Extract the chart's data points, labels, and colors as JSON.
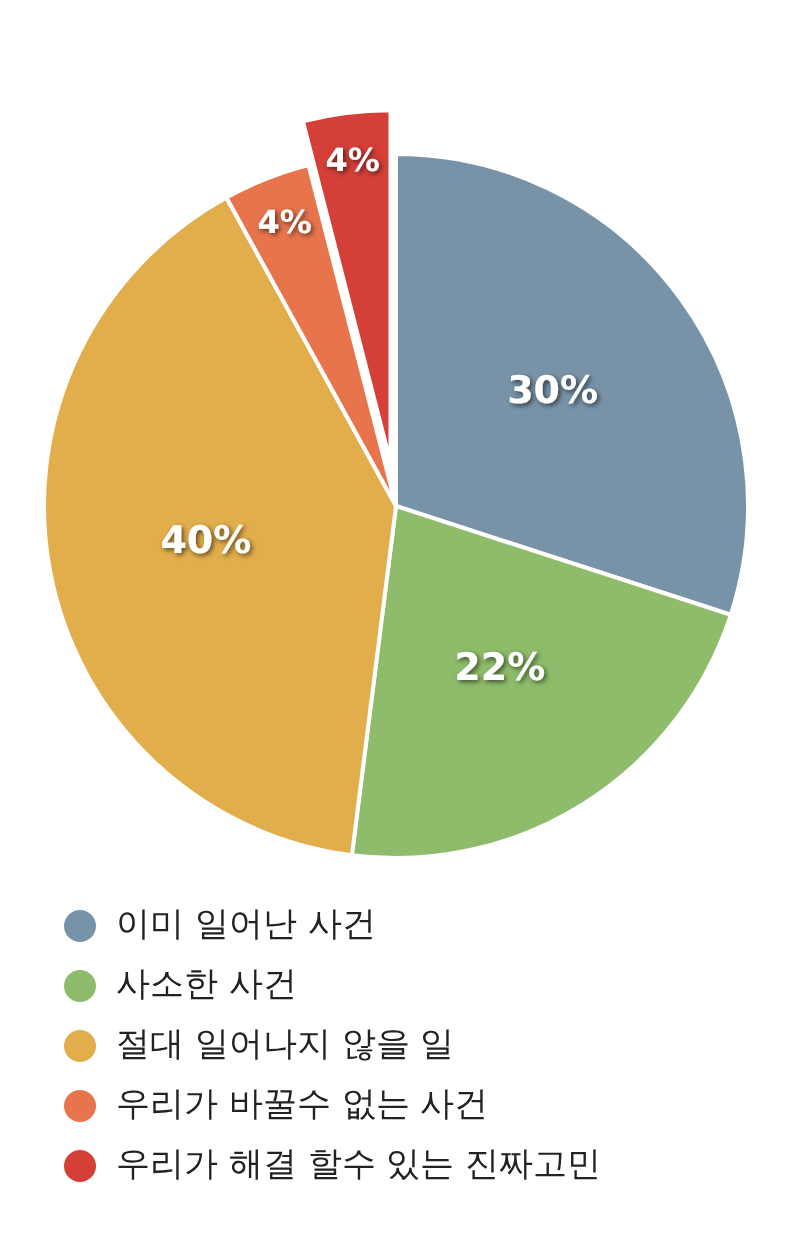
{
  "chart_data": {
    "type": "pie",
    "categories": [
      "이미 일어난 사건",
      "사소한 사건",
      "절대 일어나지 않을 일",
      "우리가 바꿀수 없는 사건",
      "우리가 해결 할수 있는 진짜고민"
    ],
    "values": [
      30,
      22,
      40,
      4,
      4
    ],
    "colors": [
      "#7893a8",
      "#8ebc6a",
      "#e2ae4c",
      "#e8744c",
      "#d43f38"
    ],
    "value_labels": [
      "30%",
      "22%",
      "40%",
      "4%",
      "4%"
    ],
    "legend": "bottom"
  }
}
